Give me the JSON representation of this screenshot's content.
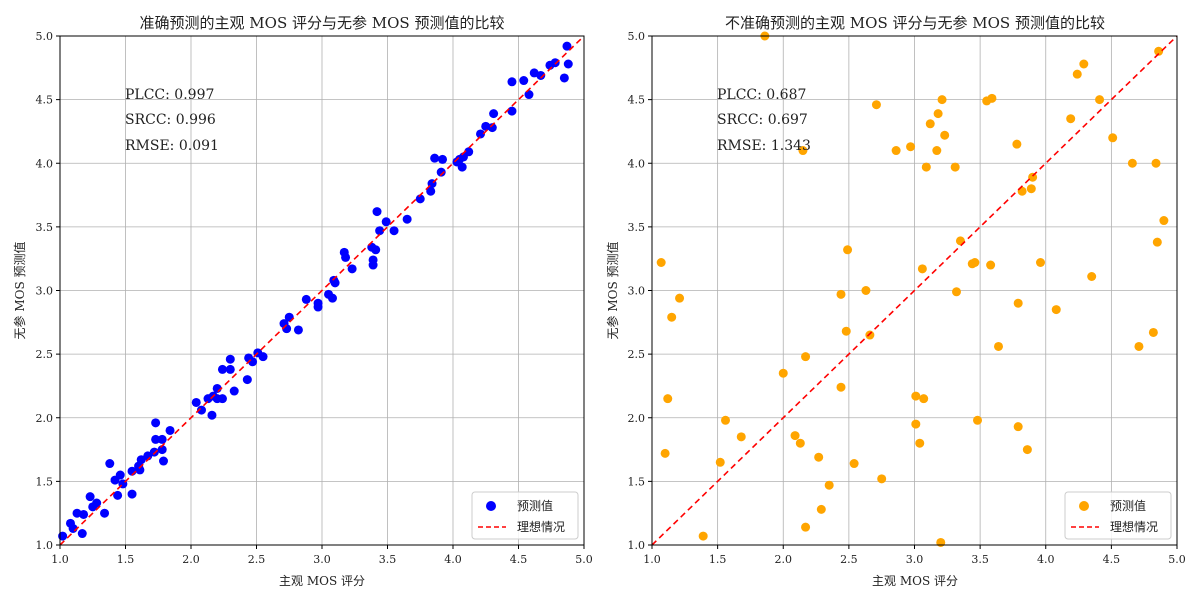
{
  "chart_data": [
    {
      "type": "scatter",
      "title": "准确预测的主观 MOS 评分与无参 MOS 预测值的比较",
      "xlabel": "主观 MOS 评分",
      "ylabel": "无参 MOS 预测值",
      "xlim": [
        1.0,
        5.0
      ],
      "ylim": [
        1.0,
        5.0
      ],
      "xticks": [
        "1.0",
        "1.5",
        "2.0",
        "2.5",
        "3.0",
        "3.5",
        "4.0",
        "4.5",
        "5.0"
      ],
      "yticks": [
        "1.0",
        "1.5",
        "2.0",
        "2.5",
        "3.0",
        "3.5",
        "4.0",
        "4.5",
        "5.0"
      ],
      "grid": true,
      "legend_position": "lower-right",
      "stats": [
        "PLCC: 0.997",
        "SRCC: 0.996",
        "RMSE: 0.091"
      ],
      "series": [
        {
          "name": "预测值",
          "kind": "points",
          "color": "#0000ff",
          "points": [
            [
              1.02,
              1.07
            ],
            [
              1.08,
              1.17
            ],
            [
              1.1,
              1.13
            ],
            [
              1.13,
              1.25
            ],
            [
              1.18,
              1.24
            ],
            [
              1.17,
              1.09
            ],
            [
              1.23,
              1.38
            ],
            [
              1.25,
              1.3
            ],
            [
              1.28,
              1.33
            ],
            [
              1.34,
              1.25
            ],
            [
              1.38,
              1.64
            ],
            [
              1.42,
              1.51
            ],
            [
              1.44,
              1.39
            ],
            [
              1.46,
              1.55
            ],
            [
              1.48,
              1.48
            ],
            [
              1.55,
              1.58
            ],
            [
              1.55,
              1.4
            ],
            [
              1.6,
              1.62
            ],
            [
              1.62,
              1.67
            ],
            [
              1.61,
              1.59
            ],
            [
              1.67,
              1.7
            ],
            [
              1.72,
              1.73
            ],
            [
              1.73,
              1.83
            ],
            [
              1.73,
              1.96
            ],
            [
              1.78,
              1.83
            ],
            [
              1.78,
              1.75
            ],
            [
              1.79,
              1.66
            ],
            [
              1.84,
              1.9
            ],
            [
              2.04,
              2.12
            ],
            [
              2.08,
              2.06
            ],
            [
              2.13,
              2.15
            ],
            [
              2.16,
              2.02
            ],
            [
              2.17,
              2.17
            ],
            [
              2.2,
              2.15
            ],
            [
              2.2,
              2.23
            ],
            [
              2.24,
              2.38
            ],
            [
              2.24,
              2.15
            ],
            [
              2.3,
              2.46
            ],
            [
              2.3,
              2.38
            ],
            [
              2.33,
              2.21
            ],
            [
              2.43,
              2.3
            ],
            [
              2.44,
              2.47
            ],
            [
              2.47,
              2.44
            ],
            [
              2.51,
              2.51
            ],
            [
              2.55,
              2.48
            ],
            [
              2.71,
              2.74
            ],
            [
              2.73,
              2.7
            ],
            [
              2.75,
              2.79
            ],
            [
              2.82,
              2.69
            ],
            [
              2.88,
              2.93
            ],
            [
              2.97,
              2.87
            ],
            [
              2.97,
              2.9
            ],
            [
              3.05,
              2.97
            ],
            [
              3.08,
              2.94
            ],
            [
              3.09,
              3.08
            ],
            [
              3.1,
              3.06
            ],
            [
              3.17,
              3.3
            ],
            [
              3.18,
              3.26
            ],
            [
              3.23,
              3.17
            ],
            [
              3.38,
              3.34
            ],
            [
              3.39,
              3.24
            ],
            [
              3.39,
              3.2
            ],
            [
              3.41,
              3.32
            ],
            [
              3.42,
              3.62
            ],
            [
              3.44,
              3.47
            ],
            [
              3.49,
              3.54
            ],
            [
              3.55,
              3.47
            ],
            [
              3.65,
              3.56
            ],
            [
              3.75,
              3.72
            ],
            [
              3.83,
              3.78
            ],
            [
              3.84,
              3.84
            ],
            [
              3.86,
              4.04
            ],
            [
              3.91,
              3.93
            ],
            [
              3.92,
              4.03
            ],
            [
              4.03,
              4.01
            ],
            [
              4.05,
              4.03
            ],
            [
              4.07,
              3.97
            ],
            [
              4.08,
              4.05
            ],
            [
              4.12,
              4.09
            ],
            [
              4.21,
              4.23
            ],
            [
              4.25,
              4.29
            ],
            [
              4.3,
              4.28
            ],
            [
              4.31,
              4.39
            ],
            [
              4.45,
              4.41
            ],
            [
              4.45,
              4.64
            ],
            [
              4.54,
              4.65
            ],
            [
              4.58,
              4.54
            ],
            [
              4.62,
              4.71
            ],
            [
              4.67,
              4.69
            ],
            [
              4.74,
              4.77
            ],
            [
              4.78,
              4.79
            ],
            [
              4.85,
              4.67
            ],
            [
              4.87,
              4.92
            ],
            [
              4.88,
              4.78
            ]
          ]
        },
        {
          "name": "理想情况",
          "kind": "line",
          "color": "#ff0000",
          "points": [
            [
              1.0,
              1.0
            ],
            [
              5.0,
              5.0
            ]
          ]
        }
      ]
    },
    {
      "type": "scatter",
      "title": "不准确预测的主观 MOS 评分与无参 MOS 预测值的比较",
      "xlabel": "主观 MOS 评分",
      "ylabel": "无参 MOS 预测值",
      "xlim": [
        1.0,
        5.0
      ],
      "ylim": [
        1.0,
        5.0
      ],
      "xticks": [
        "1.0",
        "1.5",
        "2.0",
        "2.5",
        "3.0",
        "3.5",
        "4.0",
        "4.5",
        "5.0"
      ],
      "yticks": [
        "1.0",
        "1.5",
        "2.0",
        "2.5",
        "3.0",
        "3.5",
        "4.0",
        "4.5",
        "5.0"
      ],
      "grid": true,
      "legend_position": "lower-right",
      "stats": [
        "PLCC: 0.687",
        "SRCC: 0.697",
        "RMSE: 1.343"
      ],
      "series": [
        {
          "name": "预测值",
          "kind": "points",
          "color": "#ffa500",
          "points": [
            [
              1.07,
              3.22
            ],
            [
              1.1,
              1.72
            ],
            [
              1.12,
              2.15
            ],
            [
              1.15,
              2.79
            ],
            [
              1.21,
              2.94
            ],
            [
              1.39,
              1.07
            ],
            [
              1.52,
              1.65
            ],
            [
              1.56,
              1.98
            ],
            [
              1.68,
              1.85
            ],
            [
              1.86,
              5.0
            ],
            [
              2.0,
              2.35
            ],
            [
              2.09,
              1.86
            ],
            [
              2.13,
              1.8
            ],
            [
              2.15,
              4.1
            ],
            [
              2.17,
              2.48
            ],
            [
              2.17,
              1.14
            ],
            [
              2.27,
              1.69
            ],
            [
              2.29,
              1.28
            ],
            [
              2.35,
              1.47
            ],
            [
              2.44,
              2.24
            ],
            [
              2.44,
              2.97
            ],
            [
              2.48,
              2.68
            ],
            [
              2.49,
              3.32
            ],
            [
              2.54,
              1.64
            ],
            [
              2.63,
              3.0
            ],
            [
              2.66,
              2.65
            ],
            [
              2.71,
              4.46
            ],
            [
              2.75,
              1.52
            ],
            [
              2.86,
              4.1
            ],
            [
              2.97,
              4.13
            ],
            [
              3.01,
              2.17
            ],
            [
              3.01,
              1.95
            ],
            [
              3.04,
              1.8
            ],
            [
              3.06,
              3.17
            ],
            [
              3.07,
              2.15
            ],
            [
              3.09,
              3.97
            ],
            [
              3.12,
              4.31
            ],
            [
              3.17,
              4.1
            ],
            [
              3.18,
              4.39
            ],
            [
              3.21,
              4.5
            ],
            [
              3.23,
              4.22
            ],
            [
              3.2,
              1.02
            ],
            [
              3.31,
              3.97
            ],
            [
              3.32,
              2.99
            ],
            [
              3.35,
              3.39
            ],
            [
              3.44,
              3.21
            ],
            [
              3.46,
              3.22
            ],
            [
              3.48,
              1.98
            ],
            [
              3.55,
              4.49
            ],
            [
              3.58,
              3.2
            ],
            [
              3.59,
              4.51
            ],
            [
              3.64,
              2.56
            ],
            [
              3.78,
              4.15
            ],
            [
              3.79,
              2.9
            ],
            [
              3.79,
              1.93
            ],
            [
              3.82,
              3.78
            ],
            [
              3.86,
              1.75
            ],
            [
              3.89,
              3.8
            ],
            [
              3.9,
              3.89
            ],
            [
              3.96,
              3.22
            ],
            [
              4.08,
              2.85
            ],
            [
              4.19,
              4.35
            ],
            [
              4.24,
              4.7
            ],
            [
              4.29,
              4.78
            ],
            [
              4.35,
              3.11
            ],
            [
              4.41,
              4.5
            ],
            [
              4.51,
              4.2
            ],
            [
              4.66,
              4.0
            ],
            [
              4.71,
              2.56
            ],
            [
              4.82,
              2.67
            ],
            [
              4.84,
              4.0
            ],
            [
              4.85,
              3.38
            ],
            [
              4.86,
              4.88
            ],
            [
              4.9,
              3.55
            ]
          ]
        },
        {
          "name": "理想情况",
          "kind": "line",
          "color": "#ff0000",
          "points": [
            [
              1.0,
              1.0
            ],
            [
              5.0,
              5.0
            ]
          ]
        }
      ]
    }
  ]
}
